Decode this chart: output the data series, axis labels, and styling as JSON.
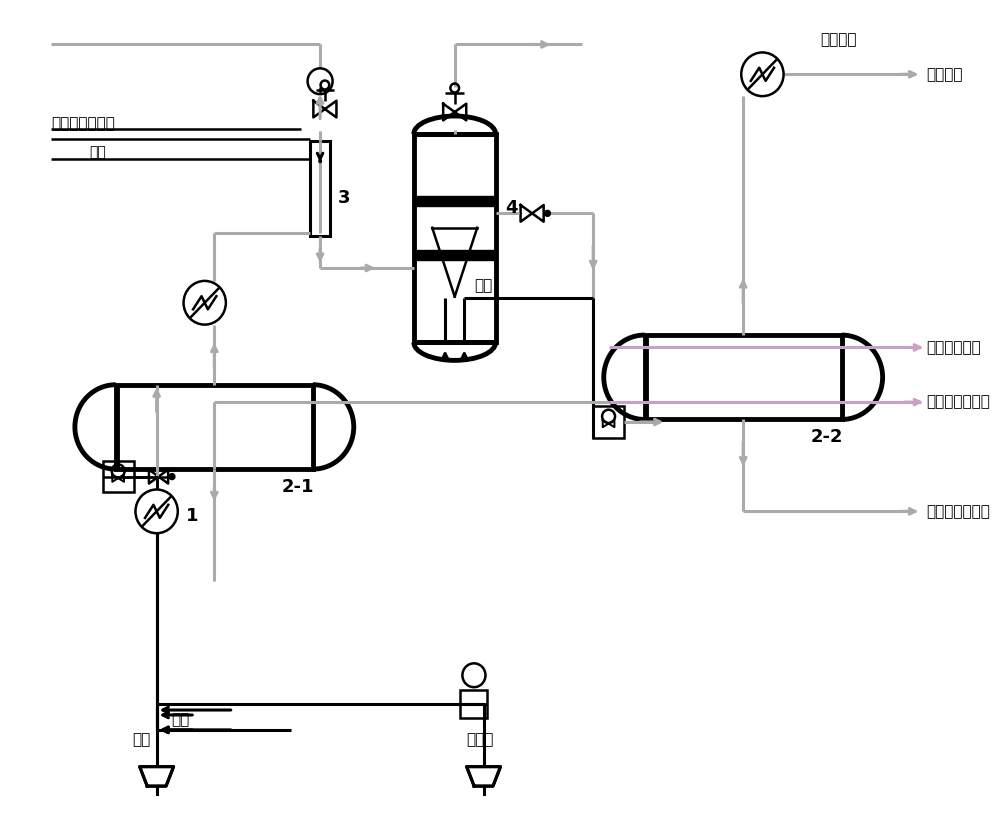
{
  "bg_color": "#ffffff",
  "line_color": "#000000",
  "gray_color": "#aaaaaa",
  "pink_color": "#c8a0c8",
  "text_color": "#000000",
  "figsize": [
    10.0,
    8.32
  ],
  "dpi": 100,
  "labels": {
    "top_left_water": "二级电脱盐切水",
    "top_left_inject": "注水",
    "label3": "3",
    "label4": "4",
    "label_2_1": "2-1",
    "label_2_2": "2-2",
    "label_1": "1",
    "inject_water_mid": "注水",
    "crude_oil_in": "原油",
    "demulsifier": "破之剂",
    "desalted_oil": "脱后原油",
    "level2_water": "二级电脱盐切水",
    "swirl_water": "旋流含盐污水",
    "level1_water": "一级电脱盐切水"
  }
}
